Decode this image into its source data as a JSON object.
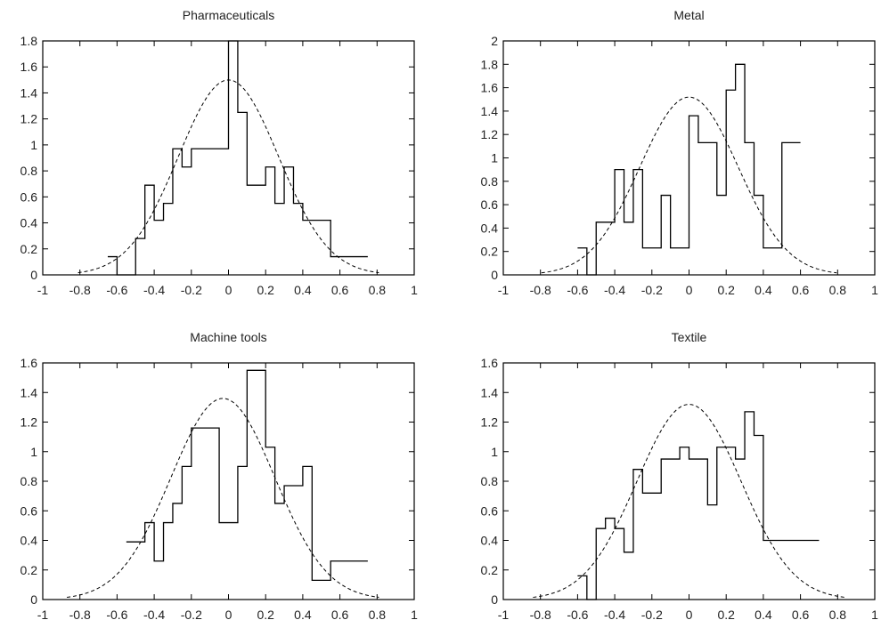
{
  "chart_data": [
    {
      "type": "line",
      "title": "Pharmaceuticals",
      "xlim": [
        -1,
        1
      ],
      "ylim": [
        0,
        1.8
      ],
      "xticks": [
        "-1",
        "-0.8",
        "-0.6",
        "-0.4",
        "-0.2",
        "0",
        "0.2",
        "0.4",
        "0.6",
        "0.8",
        "1"
      ],
      "yticks": [
        "0",
        "0.2",
        "0.4",
        "0.6",
        "0.8",
        "1",
        "1.2",
        "1.4",
        "1.6",
        "1.8"
      ],
      "histogram": {
        "edges": [
          -0.65,
          -0.6,
          -0.55,
          -0.5,
          -0.45,
          -0.4,
          -0.35,
          -0.3,
          -0.25,
          -0.2,
          -0.15,
          -0.1,
          -0.05,
          0.0,
          0.05,
          0.1,
          0.15,
          0.2,
          0.25,
          0.3,
          0.35,
          0.4,
          0.45,
          0.5,
          0.55,
          0.6,
          0.65,
          0.7,
          0.75
        ],
        "values": [
          0.14,
          0.0,
          0.0,
          0.28,
          0.69,
          0.42,
          0.55,
          0.97,
          0.83,
          0.97,
          0.97,
          0.97,
          0.97,
          1.8,
          1.25,
          0.69,
          0.69,
          0.83,
          0.55,
          0.83,
          0.55,
          0.42,
          0.42,
          0.42,
          0.14,
          0.14,
          0.14,
          0.14
        ]
      },
      "gaussian": {
        "mu": 0.0,
        "sigma": 0.27,
        "peak": 1.5
      }
    },
    {
      "type": "line",
      "title": "Metal",
      "xlim": [
        -1,
        1
      ],
      "ylim": [
        0,
        2
      ],
      "xticks": [
        "-1",
        "-0.8",
        "-0.6",
        "-0.4",
        "-0.2",
        "0",
        "0.2",
        "0.4",
        "0.6",
        "0.8",
        "1"
      ],
      "yticks": [
        "0",
        "0.2",
        "0.4",
        "0.6",
        "0.8",
        "1",
        "1.2",
        "1.4",
        "1.6",
        "1.8",
        "2"
      ],
      "histogram": {
        "edges": [
          -0.6,
          -0.55,
          -0.5,
          -0.45,
          -0.4,
          -0.35,
          -0.3,
          -0.25,
          -0.2,
          -0.15,
          -0.1,
          -0.05,
          0.0,
          0.05,
          0.1,
          0.15,
          0.2,
          0.25,
          0.3,
          0.35,
          0.4,
          0.45,
          0.5,
          0.55,
          0.6
        ],
        "values": [
          0.23,
          0.0,
          0.45,
          0.45,
          0.9,
          0.45,
          0.9,
          0.23,
          0.23,
          0.68,
          0.23,
          0.23,
          1.36,
          1.13,
          1.13,
          0.68,
          1.58,
          1.8,
          1.13,
          0.68,
          0.23,
          0.23,
          1.13,
          1.13
        ]
      },
      "gaussian": {
        "mu": 0.0,
        "sigma": 0.265,
        "peak": 1.52
      }
    },
    {
      "type": "line",
      "title": "Machine tools",
      "xlim": [
        -1,
        1
      ],
      "ylim": [
        0,
        1.6
      ],
      "xticks": [
        "-1",
        "-0.8",
        "-0.6",
        "-0.4",
        "-0.2",
        "0",
        "0.2",
        "0.4",
        "0.6",
        "0.8",
        "1"
      ],
      "yticks": [
        "0",
        "0.2",
        "0.4",
        "0.6",
        "0.8",
        "1",
        "1.2",
        "1.4",
        "1.6"
      ],
      "histogram": {
        "edges": [
          -0.55,
          -0.5,
          -0.45,
          -0.4,
          -0.35,
          -0.3,
          -0.25,
          -0.2,
          -0.15,
          -0.1,
          -0.05,
          0.0,
          0.05,
          0.1,
          0.15,
          0.2,
          0.25,
          0.3,
          0.35,
          0.4,
          0.45,
          0.5,
          0.55,
          0.6,
          0.65,
          0.7,
          0.75
        ],
        "values": [
          0.39,
          0.39,
          0.52,
          0.26,
          0.52,
          0.65,
          0.9,
          1.16,
          1.16,
          1.16,
          0.52,
          0.52,
          0.9,
          1.55,
          1.55,
          1.03,
          0.65,
          0.77,
          0.77,
          0.9,
          0.13,
          0.13,
          0.26,
          0.26,
          0.26,
          0.26
        ]
      },
      "gaussian": {
        "mu": -0.03,
        "sigma": 0.28,
        "peak": 1.36
      }
    },
    {
      "type": "line",
      "title": "Textile",
      "xlim": [
        -1,
        1
      ],
      "ylim": [
        0,
        1.6
      ],
      "xticks": [
        "-1",
        "-0.8",
        "-0.6",
        "-0.4",
        "-0.2",
        "0",
        "0.2",
        "0.4",
        "0.6",
        "0.8",
        "1"
      ],
      "yticks": [
        "0",
        "0.2",
        "0.4",
        "0.6",
        "0.8",
        "1",
        "1.2",
        "1.4",
        "1.6"
      ],
      "histogram": {
        "edges": [
          -0.6,
          -0.55,
          -0.5,
          -0.45,
          -0.4,
          -0.35,
          -0.3,
          -0.25,
          -0.2,
          -0.15,
          -0.1,
          -0.05,
          0.0,
          0.05,
          0.1,
          0.15,
          0.2,
          0.25,
          0.3,
          0.35,
          0.4,
          0.45,
          0.5,
          0.55,
          0.6,
          0.65,
          0.7
        ],
        "values": [
          0.16,
          0.0,
          0.48,
          0.55,
          0.48,
          0.32,
          0.88,
          0.72,
          0.72,
          0.95,
          0.95,
          1.03,
          0.95,
          0.95,
          0.64,
          1.03,
          1.03,
          0.95,
          1.27,
          1.11,
          0.4,
          0.4,
          0.4,
          0.4,
          0.4,
          0.4
        ]
      },
      "gaussian": {
        "mu": 0.0,
        "sigma": 0.28,
        "peak": 1.32
      }
    }
  ]
}
